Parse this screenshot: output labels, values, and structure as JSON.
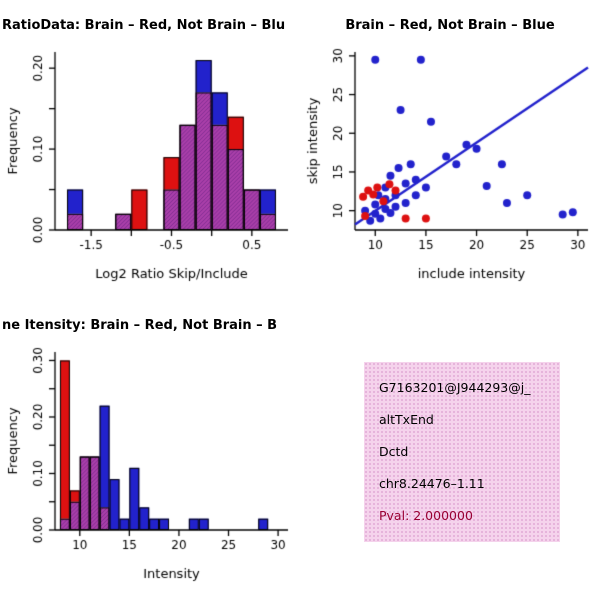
{
  "colors": {
    "red": "#DD1111",
    "blue": "#2222CC",
    "overlap_purple": "#AA3FAA",
    "axis": "#000000",
    "info_box_bg": "#F5D3EC",
    "pval_text": "#990033"
  },
  "info_box": {
    "gene_id": "G7163201@J944293@j_",
    "event_type": "altTxEnd",
    "gene_name": "Dctd",
    "location": "chr8.24476–1.11",
    "pval": "Pval: 2.000000"
  },
  "chart_data": [
    {
      "type": "bar",
      "title": "RatioData: Brain – Red, Not Brain – Blu",
      "xlabel": "Log2 Ratio Skip/Include",
      "ylabel": "Frequency",
      "xlim": [
        -1.95,
        0.95
      ],
      "ylim": [
        0,
        0.22
      ],
      "xticks": [
        -1.5,
        -1.0,
        -0.5,
        0.0,
        0.5
      ],
      "xtick_labels": [
        "-1.5",
        "",
        "-0.5",
        "",
        "0.5"
      ],
      "yticks": [
        0,
        0.05,
        0.1,
        0.15,
        0.2
      ],
      "ytick_labels": [
        "0.00",
        "",
        "0.10",
        "",
        "0.20"
      ],
      "bin_width": 0.2,
      "bin_start": [
        -1.8,
        -1.2,
        -1.0,
        -0.6,
        -0.4,
        -0.2,
        0.0,
        0.2,
        0.4,
        0.6
      ],
      "series": [
        {
          "name": "Not Brain",
          "color_key": "blue",
          "values": [
            0.05,
            0.02,
            0.0,
            0.05,
            0.13,
            0.21,
            0.17,
            0.1,
            0.05,
            0.05
          ]
        },
        {
          "name": "Brain",
          "color_key": "red",
          "values": [
            0.02,
            0.02,
            0.05,
            0.09,
            0.13,
            0.17,
            0.13,
            0.14,
            0.05,
            0.02
          ]
        }
      ]
    },
    {
      "type": "scatter",
      "title": "Brain – Red, Not Brain – Blue",
      "xlabel": "include intensity",
      "ylabel": "skip intensity",
      "xlim": [
        8,
        31
      ],
      "ylim": [
        7.5,
        30.5
      ],
      "xticks": [
        10,
        15,
        20,
        25,
        30
      ],
      "yticks": [
        10,
        15,
        20,
        25,
        30
      ],
      "line": {
        "x1": 8,
        "y1": 8.2,
        "x2": 31,
        "y2": 28.5,
        "color_key": "blue"
      },
      "series": [
        {
          "name": "Not Brain",
          "color_key": "blue",
          "points": [
            [
              9,
              10
            ],
            [
              9.5,
              8.7
            ],
            [
              10,
              9.6
            ],
            [
              10,
              10.8
            ],
            [
              10.3,
              12
            ],
            [
              10.5,
              9
            ],
            [
              11,
              10.2
            ],
            [
              11,
              11.5
            ],
            [
              11,
              13
            ],
            [
              11.5,
              9.7
            ],
            [
              11.5,
              14.5
            ],
            [
              12,
              10.5
            ],
            [
              12,
              12
            ],
            [
              12.3,
              15.5
            ],
            [
              12.5,
              23
            ],
            [
              13,
              11
            ],
            [
              13,
              13.5
            ],
            [
              13.5,
              16
            ],
            [
              14,
              12
            ],
            [
              14,
              14
            ],
            [
              10,
              29.5
            ],
            [
              14.5,
              29.5
            ],
            [
              15,
              13
            ],
            [
              15.5,
              21.5
            ],
            [
              17,
              17
            ],
            [
              18,
              16
            ],
            [
              19,
              18.5
            ],
            [
              20,
              18
            ],
            [
              21,
              13.2
            ],
            [
              22.5,
              16
            ],
            [
              23,
              11
            ],
            [
              25,
              12
            ],
            [
              28.5,
              9.5
            ],
            [
              29.5,
              9.8
            ]
          ]
        },
        {
          "name": "Brain",
          "color_key": "red",
          "points": [
            [
              8.8,
              11.8
            ],
            [
              9.3,
              12.6
            ],
            [
              9.8,
              12.1
            ],
            [
              10.2,
              13
            ],
            [
              10.8,
              11.2
            ],
            [
              11.4,
              13.4
            ],
            [
              12,
              12.6
            ],
            [
              13,
              9
            ],
            [
              15,
              9
            ],
            [
              9,
              9.3
            ]
          ]
        }
      ]
    },
    {
      "type": "bar",
      "title": "ne Itensity: Brain – Red, Not Brain – B",
      "xlabel": "Intensity",
      "ylabel": "Frequency",
      "xlim": [
        7.5,
        31
      ],
      "ylim": [
        0,
        0.315
      ],
      "xticks": [
        10,
        15,
        20,
        25,
        30
      ],
      "yticks": [
        0,
        0.05,
        0.1,
        0.15,
        0.2,
        0.25,
        0.3
      ],
      "ytick_labels": [
        "0.00",
        "",
        "0.10",
        "",
        "0.20",
        "",
        "0.30"
      ],
      "bin_width": 1,
      "bin_start": [
        8,
        9,
        10,
        11,
        12,
        13,
        14,
        15,
        16,
        17,
        18,
        21,
        22,
        28
      ],
      "series": [
        {
          "name": "Not Brain",
          "color_key": "blue",
          "values": [
            0.02,
            0.05,
            0.13,
            0.13,
            0.22,
            0.09,
            0.02,
            0.11,
            0.04,
            0.02,
            0.02,
            0.02,
            0.02,
            0.02
          ]
        },
        {
          "name": "Brain",
          "color_key": "red",
          "values": [
            0.3,
            0.07,
            0.13,
            0.13,
            0.04,
            0,
            0,
            0,
            0,
            0,
            0,
            0,
            0,
            0
          ]
        }
      ]
    }
  ]
}
